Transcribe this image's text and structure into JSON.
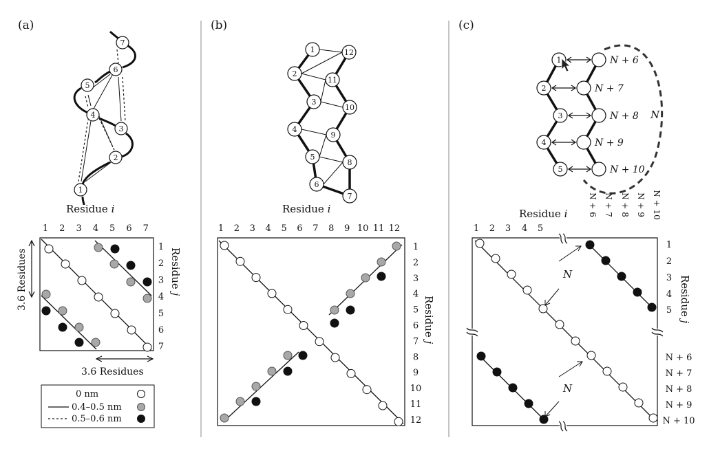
{
  "panels": {
    "a": {
      "label": "(a)",
      "residue_axis_label": "Residue",
      "residue_axis_var": "i",
      "side_axis_label": "Residue",
      "side_axis_var": "j",
      "ticks_top": [
        "1",
        "2",
        "3",
        "4",
        "5",
        "6",
        "7"
      ],
      "ticks_right": [
        "1",
        "2",
        "3",
        "4",
        "5",
        "6",
        "7"
      ],
      "nodes": [
        "1",
        "2",
        "3",
        "4",
        "5",
        "6",
        "7"
      ],
      "span_label_vertical": "3.6 Residues",
      "span_label_horizontal": "3.6 Residues",
      "legend": [
        {
          "line": "none",
          "text": "0 nm",
          "marker": "white"
        },
        {
          "line": "solid",
          "text": "0.4–0.5 nm",
          "marker": "gray"
        },
        {
          "line": "dashed",
          "text": "0.5–0.6 nm",
          "marker": "black"
        }
      ]
    },
    "b": {
      "label": "(b)",
      "residue_axis_label": "Residue",
      "residue_axis_var": "i",
      "side_axis_label": "Residue",
      "side_axis_var": "j",
      "ticks_top": [
        "1",
        "2",
        "3",
        "4",
        "5",
        "6",
        "7",
        "8",
        "9",
        "10",
        "11",
        "12"
      ],
      "ticks_right": [
        "1",
        "2",
        "3",
        "4",
        "5",
        "6",
        "7",
        "8",
        "9",
        "10",
        "11",
        "12"
      ],
      "nodes": [
        "1",
        "2",
        "3",
        "4",
        "5",
        "6",
        "7",
        "8",
        "9",
        "10",
        "11",
        "12"
      ]
    },
    "c": {
      "label": "(c)",
      "residue_axis_label": "Residue",
      "residue_axis_var": "i",
      "side_axis_label": "Residue",
      "side_axis_var": "j",
      "ticks_top": [
        "1",
        "2",
        "3",
        "4",
        "5",
        "N + 6",
        "N + 7",
        "N + 8",
        "N + 9",
        "N + 10"
      ],
      "ticks_right": [
        "1",
        "2",
        "3",
        "4",
        "5",
        "N + 6",
        "N + 7",
        "N + 8",
        "N + 9",
        "N + 10"
      ],
      "nodes_left": [
        "1",
        "2",
        "3",
        "4",
        "5"
      ],
      "nodes_right_labels": [
        "N + 6",
        "N + 7",
        "N + 8",
        "N + 9",
        "N + 10"
      ],
      "loop_label": "N",
      "gap_label": "N"
    }
  },
  "colors": {
    "white": "#ffffff",
    "gray": "#a8a8a8",
    "black": "#111111",
    "ink": "#111111"
  }
}
